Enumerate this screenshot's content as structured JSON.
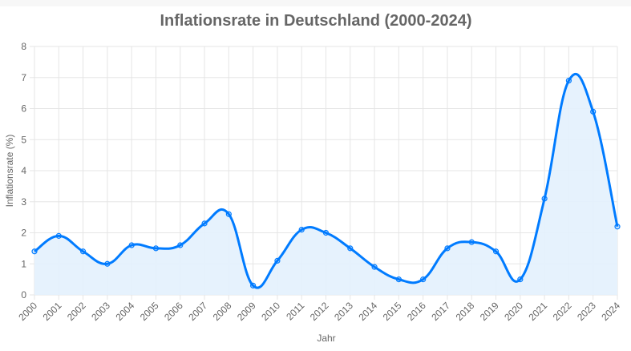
{
  "chart_data": {
    "type": "line",
    "title": "Inflationsrate in Deutschland (2000-2024)",
    "xlabel": "Jahr",
    "ylabel": "Inflationsrate (%)",
    "categories": [
      "2000",
      "2001",
      "2002",
      "2003",
      "2004",
      "2005",
      "2006",
      "2007",
      "2008",
      "2009",
      "2010",
      "2011",
      "2012",
      "2013",
      "2014",
      "2015",
      "2016",
      "2017",
      "2018",
      "2019",
      "2020",
      "2021",
      "2022",
      "2023",
      "2024"
    ],
    "values": [
      1.4,
      1.9,
      1.4,
      1.0,
      1.6,
      1.5,
      1.6,
      2.3,
      2.6,
      0.3,
      1.1,
      2.1,
      2.0,
      1.5,
      0.9,
      0.5,
      0.5,
      1.5,
      1.7,
      1.4,
      0.5,
      3.1,
      6.9,
      5.9,
      2.2
    ],
    "ylim": [
      0,
      8
    ],
    "yticks": [
      "0",
      "1",
      "2",
      "3",
      "4",
      "5",
      "6",
      "7",
      "8"
    ],
    "grid": true,
    "fill": true,
    "smooth": true,
    "colors": {
      "line": "#007bff",
      "fill": "#e3f1fd",
      "grid": "#e5e5e5",
      "text": "#666666"
    }
  }
}
